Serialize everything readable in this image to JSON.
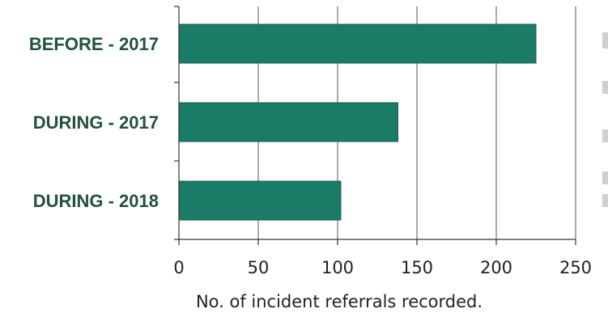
{
  "chart_data": {
    "type": "bar",
    "orientation": "horizontal",
    "categories": [
      "BEFORE - 2017",
      "DURING - 2017",
      "DURING - 2018"
    ],
    "values": [
      225,
      138,
      102
    ],
    "xlabel": "No. of incident referrals recorded.",
    "ylabel": "",
    "title": "",
    "xlim": [
      0,
      250
    ],
    "xticks": [
      0,
      50,
      100,
      150,
      200,
      250
    ],
    "grid": "vertical",
    "legend": "none",
    "colors": {
      "bar": "#1a7b66",
      "bar_stroke": "#145f4f",
      "category_text": "#21523c",
      "grid": "#555555",
      "axis": "#333333",
      "text": "#222222"
    }
  }
}
